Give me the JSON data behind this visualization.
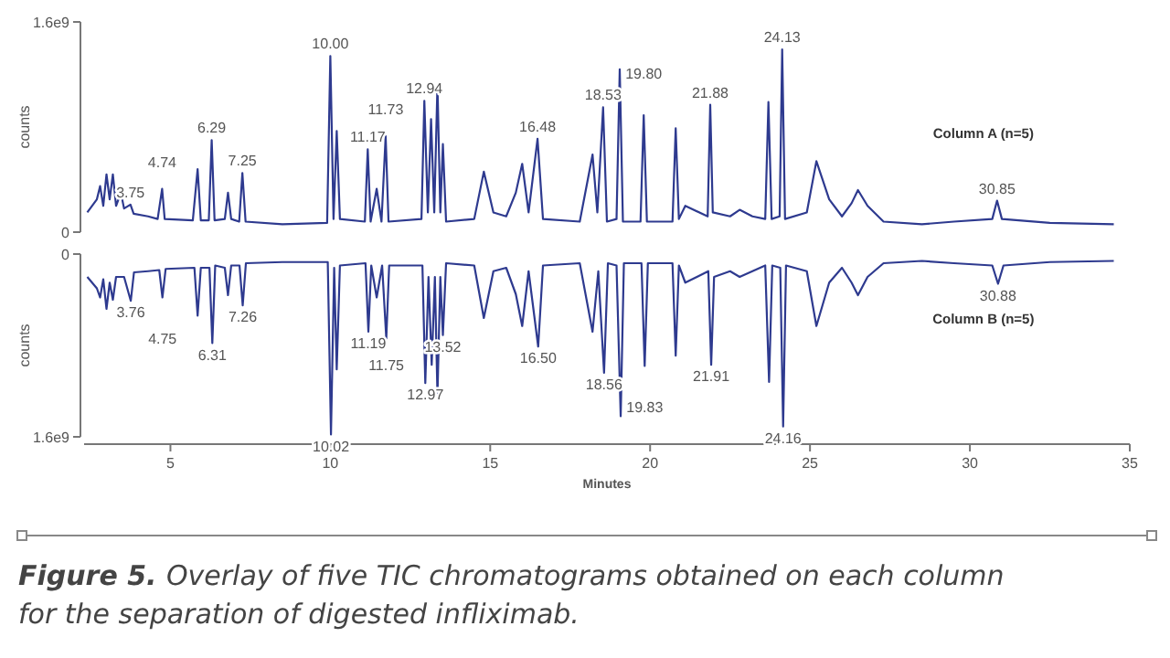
{
  "chart_data": [
    {
      "type": "line",
      "ylabel": "counts",
      "xlim": [
        2.3,
        35
      ],
      "ylim": [
        0,
        1600000000.0
      ],
      "yticks": [
        0,
        {
          "value": 1600000000.0,
          "label": "1.6e9"
        }
      ],
      "tick_labels": "y",
      "series": [
        {
          "name": "Column A (n=5)",
          "color": "#2e3a8f",
          "x": [
            2.4,
            2.7,
            2.8,
            2.9,
            3.0,
            3.1,
            3.2,
            3.3,
            3.45,
            3.55,
            3.75,
            3.85,
            4.3,
            4.6,
            4.74,
            4.82,
            5.7,
            5.85,
            5.95,
            6.2,
            6.29,
            6.38,
            6.7,
            6.8,
            6.9,
            7.15,
            7.25,
            7.35,
            8.5,
            9.9,
            10.0,
            10.1,
            10.2,
            10.3,
            11.08,
            11.17,
            11.26,
            11.45,
            11.6,
            11.73,
            11.82,
            12.85,
            12.94,
            13.05,
            13.15,
            13.25,
            13.35,
            13.44,
            13.52,
            13.62,
            14.5,
            14.8,
            15.1,
            15.5,
            15.8,
            16.0,
            16.2,
            16.48,
            16.65,
            17.8,
            18.2,
            18.35,
            18.53,
            18.65,
            18.95,
            19.05,
            19.15,
            19.7,
            19.8,
            19.9,
            20.7,
            20.8,
            20.9,
            21.1,
            21.8,
            21.88,
            21.96,
            22.5,
            22.8,
            23.2,
            23.6,
            23.7,
            23.8,
            24.05,
            24.13,
            24.22,
            24.9,
            25.2,
            25.6,
            26.0,
            26.3,
            26.5,
            26.8,
            27.3,
            28.5,
            29.5,
            30.7,
            30.85,
            31.0,
            32.5,
            34.5
          ],
          "values": [
            150000000.0,
            250000000.0,
            350000000.0,
            200000000.0,
            440000000.0,
            250000000.0,
            440000000.0,
            200000000.0,
            300000000.0,
            180000000.0,
            210000000.0,
            140000000.0,
            120000000.0,
            100000000.0,
            330000000.0,
            100000000.0,
            90000000.0,
            480000000.0,
            90000000.0,
            90000000.0,
            700000000.0,
            90000000.0,
            100000000.0,
            300000000.0,
            100000000.0,
            80000000.0,
            450000000.0,
            80000000.0,
            60000000.0,
            70000000.0,
            1340000000.0,
            100000000.0,
            770000000.0,
            100000000.0,
            80000000.0,
            630000000.0,
            80000000.0,
            330000000.0,
            80000000.0,
            730000000.0,
            80000000.0,
            100000000.0,
            1000000000.0,
            150000000.0,
            860000000.0,
            150000000.0,
            1120000000.0,
            150000000.0,
            670000000.0,
            80000000.0,
            100000000.0,
            460000000.0,
            150000000.0,
            120000000.0,
            300000000.0,
            520000000.0,
            150000000.0,
            710000000.0,
            100000000.0,
            80000000.0,
            590000000.0,
            150000000.0,
            950000000.0,
            80000000.0,
            100000000.0,
            1240000000.0,
            80000000.0,
            80000000.0,
            890000000.0,
            80000000.0,
            80000000.0,
            790000000.0,
            100000000.0,
            200000000.0,
            120000000.0,
            970000000.0,
            150000000.0,
            120000000.0,
            170000000.0,
            120000000.0,
            100000000.0,
            990000000.0,
            100000000.0,
            120000000.0,
            1390000000.0,
            100000000.0,
            150000000.0,
            540000000.0,
            250000000.0,
            120000000.0,
            220000000.0,
            320000000.0,
            200000000.0,
            80000000.0,
            60000000.0,
            80000000.0,
            100000000.0,
            240000000.0,
            100000000.0,
            70000000.0,
            60000000.0
          ]
        }
      ],
      "annotations": [
        {
          "text": "3.75",
          "x": 3.75,
          "y": 210000000.0
        },
        {
          "text": "4.74",
          "x": 4.74,
          "y": 330000000.0
        },
        {
          "text": "6.29",
          "x": 6.29,
          "y": 700000000.0
        },
        {
          "text": "7.25",
          "x": 7.25,
          "y": 450000000.0
        },
        {
          "text": "10.00",
          "x": 10.0,
          "y": 1340000000.0
        },
        {
          "text": "11.17",
          "x": 11.17,
          "y": 630000000.0
        },
        {
          "text": "11.73",
          "x": 11.73,
          "y": 730000000.0
        },
        {
          "text": "12.94",
          "x": 12.94,
          "y": 1000000000.0
        },
        {
          "text": "16.48",
          "x": 16.48,
          "y": 710000000.0
        },
        {
          "text": "18.53",
          "x": 18.53,
          "y": 950000000.0
        },
        {
          "text": "19.80",
          "x": 19.8,
          "y": 890000000.0
        },
        {
          "text": "21.88",
          "x": 21.88,
          "y": 970000000.0
        },
        {
          "text": "24.13",
          "x": 24.13,
          "y": 1390000000.0
        },
        {
          "text": "30.85",
          "x": 30.85,
          "y": 240000000.0
        }
      ]
    },
    {
      "type": "line",
      "xlabel": "Minutes",
      "ylabel": "counts",
      "xlim": [
        2.3,
        35
      ],
      "xticks": [
        5,
        10,
        15,
        20,
        25,
        30,
        35
      ],
      "ylim": [
        1600000000.0,
        0
      ],
      "yticks": [
        0,
        {
          "value": 1600000000.0,
          "label": "1.6e9"
        }
      ],
      "series": [
        {
          "name": "Column B (n=5)",
          "color": "#2e3a8f",
          "x": [
            2.4,
            2.7,
            2.8,
            2.9,
            3.0,
            3.1,
            3.2,
            3.3,
            3.55,
            3.76,
            3.86,
            4.3,
            4.65,
            4.75,
            4.85,
            5.75,
            5.85,
            5.95,
            6.22,
            6.31,
            6.4,
            6.7,
            6.8,
            6.9,
            7.16,
            7.26,
            7.36,
            8.5,
            9.92,
            10.02,
            10.12,
            10.2,
            10.3,
            11.1,
            11.19,
            11.28,
            11.45,
            11.62,
            11.75,
            11.84,
            12.88,
            12.97,
            13.07,
            13.17,
            13.27,
            13.35,
            13.44,
            13.52,
            13.62,
            14.5,
            14.8,
            15.1,
            15.5,
            15.8,
            16.0,
            16.2,
            16.5,
            16.65,
            17.8,
            18.2,
            18.38,
            18.56,
            18.68,
            18.95,
            19.08,
            19.18,
            19.73,
            19.83,
            19.93,
            20.7,
            20.8,
            20.9,
            21.1,
            21.82,
            21.91,
            22.0,
            22.5,
            22.8,
            23.2,
            23.6,
            23.72,
            23.82,
            24.07,
            24.16,
            24.25,
            24.9,
            25.2,
            25.6,
            26.0,
            26.3,
            26.5,
            26.8,
            27.3,
            28.5,
            29.5,
            30.7,
            30.88,
            31.05,
            32.5,
            34.5
          ],
          "values": [
            200000000.0,
            300000000.0,
            380000000.0,
            220000000.0,
            480000000.0,
            250000000.0,
            400000000.0,
            200000000.0,
            200000000.0,
            410000000.0,
            160000000.0,
            150000000.0,
            140000000.0,
            380000000.0,
            130000000.0,
            120000000.0,
            540000000.0,
            120000000.0,
            120000000.0,
            780000000.0,
            100000000.0,
            120000000.0,
            360000000.0,
            100000000.0,
            100000000.0,
            450000000.0,
            80000000.0,
            70000000.0,
            70000000.0,
            1580000000.0,
            120000000.0,
            1010000000.0,
            100000000.0,
            80000000.0,
            680000000.0,
            100000000.0,
            380000000.0,
            100000000.0,
            740000000.0,
            100000000.0,
            100000000.0,
            1130000000.0,
            200000000.0,
            970000000.0,
            200000000.0,
            1240000000.0,
            200000000.0,
            710000000.0,
            80000000.0,
            100000000.0,
            560000000.0,
            150000000.0,
            120000000.0,
            350000000.0,
            630000000.0,
            150000000.0,
            810000000.0,
            100000000.0,
            80000000.0,
            680000000.0,
            150000000.0,
            1040000000.0,
            80000000.0,
            100000000.0,
            1420000000.0,
            80000000.0,
            80000000.0,
            980000000.0,
            80000000.0,
            80000000.0,
            890000000.0,
            100000000.0,
            250000000.0,
            150000000.0,
            970000000.0,
            200000000.0,
            150000000.0,
            200000000.0,
            150000000.0,
            100000000.0,
            1120000000.0,
            100000000.0,
            120000000.0,
            1510000000.0,
            100000000.0,
            150000000.0,
            630000000.0,
            250000000.0,
            120000000.0,
            250000000.0,
            360000000.0,
            200000000.0,
            80000000.0,
            60000000.0,
            80000000.0,
            100000000.0,
            260000000.0,
            100000000.0,
            70000000.0,
            60000000.0
          ]
        }
      ],
      "annotations": [
        {
          "text": "3.76",
          "x": 3.76,
          "y": 410000000.0
        },
        {
          "text": "4.75",
          "x": 4.75,
          "y": 380000000.0
        },
        {
          "text": "6.31",
          "x": 6.31,
          "y": 780000000.0
        },
        {
          "text": "7.26",
          "x": 7.26,
          "y": 450000000.0
        },
        {
          "text": "10.02",
          "x": 10.02,
          "y": 1580000000.0
        },
        {
          "text": "11.19",
          "x": 11.19,
          "y": 680000000.0
        },
        {
          "text": "11.75",
          "x": 11.75,
          "y": 740000000.0
        },
        {
          "text": "12.97",
          "x": 12.97,
          "y": 1130000000.0
        },
        {
          "text": "13.52",
          "x": 13.52,
          "y": 710000000.0
        },
        {
          "text": "16.50",
          "x": 16.5,
          "y": 810000000.0
        },
        {
          "text": "18.56",
          "x": 18.56,
          "y": 1040000000.0
        },
        {
          "text": "19.83",
          "x": 19.83,
          "y": 980000000.0
        },
        {
          "text": "21.91",
          "x": 21.91,
          "y": 970000000.0
        },
        {
          "text": "24.16",
          "x": 24.16,
          "y": 1510000000.0
        },
        {
          "text": "30.88",
          "x": 30.88,
          "y": 260000000.0
        },
        "Figure 5. Overlay of five TIC chromatograms obtained on each column for the separation of digested infliximab."
      ]
    }
  ]
}
